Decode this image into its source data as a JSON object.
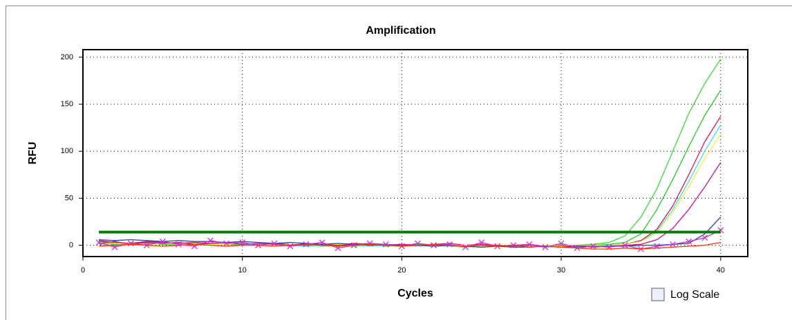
{
  "chart_data": {
    "type": "line",
    "title": "Amplification",
    "x_label": "Cycles",
    "y_label": "RFU",
    "x": [
      1,
      2,
      3,
      4,
      5,
      6,
      7,
      8,
      9,
      10,
      11,
      12,
      13,
      14,
      15,
      16,
      17,
      18,
      19,
      20,
      21,
      22,
      23,
      24,
      25,
      26,
      27,
      28,
      29,
      30,
      31,
      32,
      33,
      34,
      35,
      36,
      37,
      38,
      39,
      40
    ],
    "series": [
      {
        "color": "#33dd33",
        "values": [
          2,
          1,
          3,
          2,
          1,
          0,
          2,
          1,
          1,
          0,
          1,
          2,
          0,
          1,
          -1,
          0,
          1,
          0,
          -1,
          0,
          1,
          0,
          -1,
          0,
          0,
          -1,
          0,
          -1,
          -2,
          -1,
          0,
          1,
          3,
          10,
          30,
          60,
          100,
          140,
          172,
          198
        ]
      },
      {
        "color": "#22c822",
        "values": [
          4,
          3,
          2,
          3,
          2,
          2,
          1,
          2,
          1,
          1,
          0,
          1,
          0,
          -1,
          0,
          0,
          -1,
          0,
          1,
          0,
          0,
          -1,
          0,
          -1,
          -2,
          -1,
          -1,
          -2,
          -1,
          -2,
          -1,
          0,
          1,
          3,
          12,
          38,
          70,
          105,
          138,
          165
        ]
      },
      {
        "color": "#e0105a",
        "values": [
          5,
          3,
          2,
          4,
          3,
          2,
          3,
          2,
          1,
          2,
          1,
          2,
          1,
          0,
          1,
          0,
          2,
          1,
          0,
          1,
          0,
          1,
          2,
          0,
          1,
          -1,
          0,
          1,
          -1,
          0,
          -1,
          0,
          0,
          1,
          5,
          17,
          42,
          75,
          110,
          137
        ]
      },
      {
        "color": "#40e0e0",
        "values": [
          1,
          2,
          0,
          1,
          2,
          1,
          0,
          1,
          2,
          1,
          0,
          1,
          0,
          -1,
          0,
          1,
          0,
          -1,
          0,
          0,
          -1,
          0,
          -1,
          -2,
          -1,
          -1,
          -2,
          -1,
          -2,
          -1,
          -2,
          -1,
          0,
          1,
          4,
          15,
          38,
          68,
          100,
          128
        ]
      },
      {
        "color": "#f0f040",
        "values": [
          3,
          2,
          2,
          1,
          2,
          1,
          2,
          1,
          1,
          2,
          1,
          0,
          1,
          1,
          0,
          1,
          0,
          0,
          1,
          0,
          0,
          -1,
          0,
          0,
          -1,
          0,
          -1,
          -1,
          0,
          -1,
          -1,
          0,
          0,
          1,
          4,
          13,
          35,
          62,
          92,
          118
        ]
      },
      {
        "color": "#d01090",
        "values": [
          2,
          4,
          1,
          3,
          2,
          3,
          1,
          2,
          3,
          1,
          2,
          1,
          0,
          2,
          1,
          0,
          1,
          2,
          0,
          1,
          0,
          1,
          0,
          -1,
          1,
          0,
          -1,
          0,
          -1,
          -2,
          -1,
          -1,
          -1,
          0,
          1,
          6,
          18,
          38,
          62,
          88
        ]
      },
      {
        "color": "#2244aa",
        "values": [
          6,
          5,
          6,
          5,
          4,
          5,
          4,
          4,
          3,
          4,
          3,
          2,
          3,
          2,
          1,
          2,
          1,
          0,
          1,
          0,
          0,
          -1,
          0,
          -1,
          -2,
          -1,
          -2,
          -2,
          -1,
          -2,
          -1,
          -2,
          -1,
          -1,
          0,
          0,
          1,
          2,
          12,
          30
        ]
      },
      {
        "color": "#cc33cc",
        "marker": "x",
        "values": [
          3,
          -2,
          2,
          0,
          4,
          1,
          -1,
          5,
          2,
          3,
          0,
          2,
          -1,
          1,
          3,
          -3,
          0,
          2,
          1,
          -1,
          2,
          0,
          1,
          -2,
          3,
          -1,
          0,
          1,
          -2,
          2,
          -3,
          -1,
          -2,
          0,
          -4,
          -1,
          1,
          4,
          8,
          16
        ]
      },
      {
        "color": "#ff3300",
        "values": [
          -1,
          0,
          1,
          0,
          -1,
          0,
          1,
          0,
          -1,
          0,
          0,
          -1,
          0,
          1,
          0,
          -1,
          0,
          1,
          0,
          -1,
          0,
          1,
          0,
          -1,
          0,
          -1,
          0,
          -2,
          -1,
          -2,
          -3,
          -4,
          -4,
          -3,
          -4,
          -3,
          -2,
          -1,
          0,
          3
        ]
      }
    ],
    "threshold": 14,
    "threshold_color": "#0a7a0a",
    "xlim": [
      0,
      41.7
    ],
    "xticks": [
      0,
      10,
      20,
      30,
      40
    ],
    "ylim": [
      -12,
      208
    ],
    "yticks": [
      0,
      50,
      100,
      150,
      200
    ],
    "grid": true,
    "log_scale_label": "Log Scale",
    "log_scale": false
  }
}
